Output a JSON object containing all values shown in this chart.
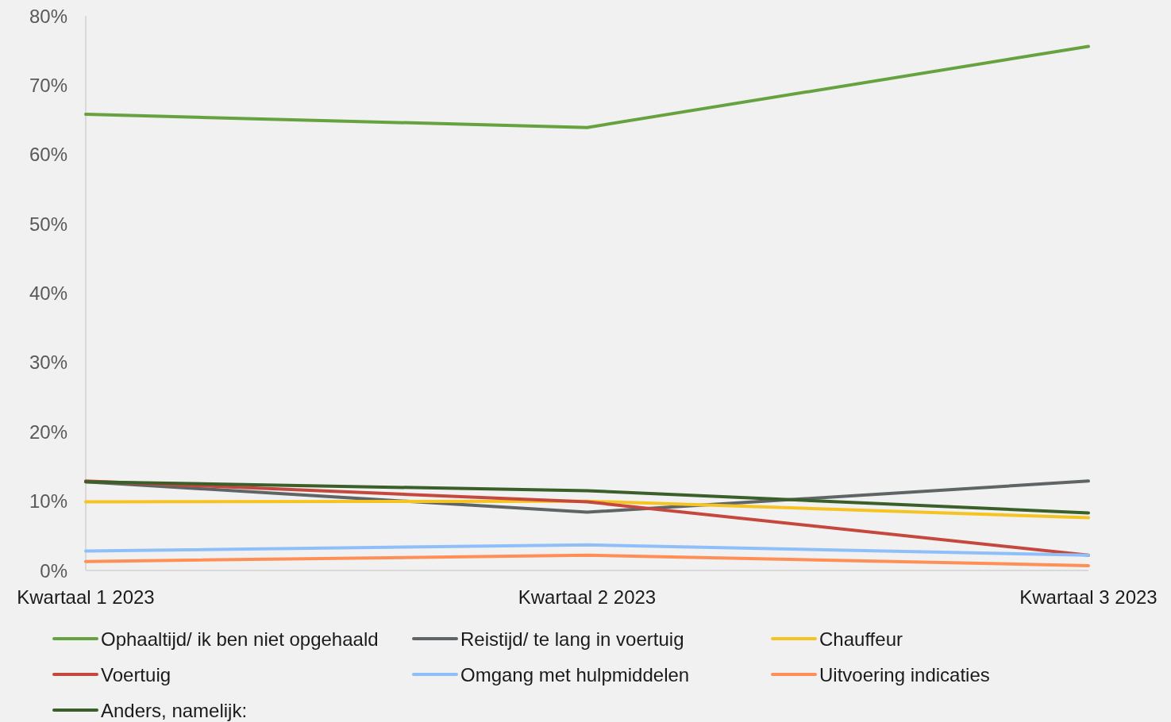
{
  "chart_data": {
    "type": "line",
    "categories": [
      "Kwartaal 1 2023",
      "Kwartaal 2 2023",
      "Kwartaal 3 2023"
    ],
    "series": [
      {
        "name": "Ophaaltijd/ ik ben niet opgehaald",
        "color": "#66a23f",
        "values": [
          65.8,
          63.9,
          75.6
        ]
      },
      {
        "name": "Reistijd/ te lang in voertuig",
        "color": "#5f6566",
        "values": [
          12.8,
          8.4,
          12.9
        ]
      },
      {
        "name": "Chauffeur",
        "color": "#f5c423",
        "values": [
          9.9,
          10,
          7.6
        ]
      },
      {
        "name": "Voertuig",
        "color": "#c5483e",
        "values": [
          12.9,
          9.9,
          2.2
        ]
      },
      {
        "name": "Omgang met hulpmiddelen",
        "color": "#8fbff9",
        "values": [
          2.8,
          3.7,
          2.2
        ]
      },
      {
        "name": "Uitvoering indicaties",
        "color": "#ff8f57",
        "values": [
          1.3,
          2.2,
          0.7
        ]
      },
      {
        "name": "Anders, namelijk:",
        "color": "#3a5f28",
        "values": [
          12.8,
          11.5,
          8.3
        ]
      }
    ],
    "ylim": [
      0,
      80
    ],
    "yticks": [
      {
        "value": 0,
        "label": "0%"
      },
      {
        "value": 10,
        "label": "10%"
      },
      {
        "value": 20,
        "label": "20%"
      },
      {
        "value": 30,
        "label": "30%"
      },
      {
        "value": 40,
        "label": "40%"
      },
      {
        "value": 50,
        "label": "50%"
      },
      {
        "value": 60,
        "label": "60%"
      },
      {
        "value": 70,
        "label": "70%"
      },
      {
        "value": 80,
        "label": "80%"
      }
    ],
    "grid": false,
    "legend": "bottom",
    "marker": "none",
    "line_style": "solid"
  }
}
